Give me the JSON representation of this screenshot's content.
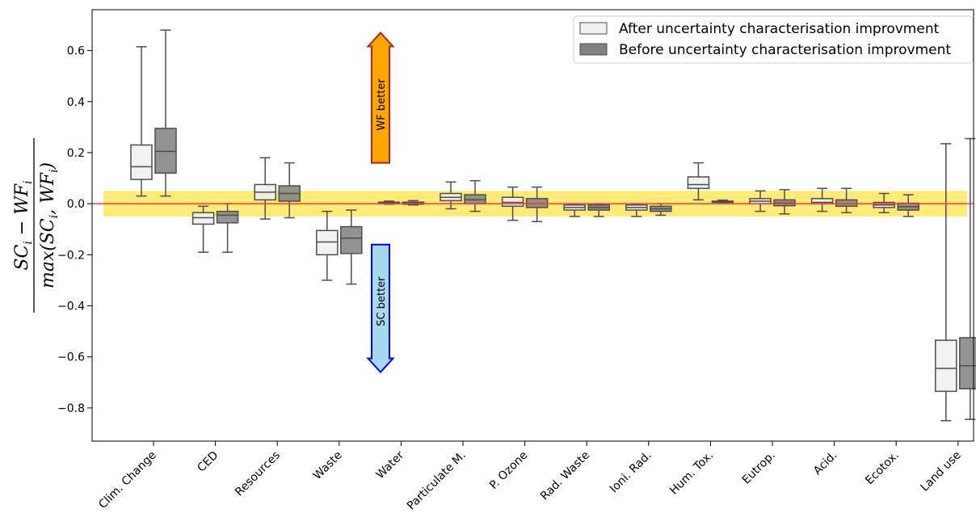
{
  "chart_data": {
    "type": "box",
    "ylabel_parts": [
      "SC",
      "i",
      " − WF",
      "i",
      "max(SC",
      "i",
      ", WF",
      "i",
      ")"
    ],
    "ylim": [
      -0.93,
      0.76
    ],
    "yticks": [
      "0.6",
      "0.4",
      "0.2",
      "0.0",
      "−0.2",
      "−0.4",
      "−0.6",
      "−0.8"
    ],
    "ytick_values": [
      0.6,
      0.4,
      0.2,
      0.0,
      -0.2,
      -0.4,
      -0.6,
      -0.8
    ],
    "categories": [
      "Clim. Change",
      "CED",
      "Resources",
      "Waste",
      "Water",
      "Particulate M.",
      "P. Ozone",
      "Rad. Waste",
      "Ioni. Rad.",
      "Hum. Tox.",
      "Eutrop.",
      "Acid.",
      "Ecotox.",
      "Land use"
    ],
    "legend": {
      "placement": "top-right",
      "entries": [
        {
          "label": "After uncertainty characterisation improvment",
          "color": "#f0f0f0"
        },
        {
          "label": "Before uncertainty characterisation improvment",
          "color": "#808080"
        }
      ]
    },
    "series": [
      {
        "name": "After uncertainty characterisation improvment",
        "color": "#f0f0f0",
        "boxes": [
          {
            "min": 0.03,
            "q1": 0.095,
            "median": 0.145,
            "q3": 0.23,
            "max": 0.615
          },
          {
            "min": -0.19,
            "q1": -0.08,
            "median": -0.055,
            "q3": -0.035,
            "max": -0.01
          },
          {
            "min": -0.06,
            "q1": 0.015,
            "median": 0.045,
            "q3": 0.075,
            "max": 0.18
          },
          {
            "min": -0.3,
            "q1": -0.2,
            "median": -0.15,
            "q3": -0.105,
            "max": -0.03
          },
          {
            "min": -0.002,
            "q1": 0.0,
            "median": 0.003,
            "q3": 0.006,
            "max": 0.01
          },
          {
            "min": -0.02,
            "q1": 0.012,
            "median": 0.025,
            "q3": 0.04,
            "max": 0.085
          },
          {
            "min": -0.065,
            "q1": -0.01,
            "median": 0.005,
            "q3": 0.025,
            "max": 0.065
          },
          {
            "min": -0.05,
            "q1": -0.025,
            "median": -0.015,
            "q3": -0.005,
            "max": 0.0
          },
          {
            "min": -0.05,
            "q1": -0.025,
            "median": -0.015,
            "q3": -0.005,
            "max": 0.0
          },
          {
            "min": 0.015,
            "q1": 0.06,
            "median": 0.075,
            "q3": 0.105,
            "max": 0.16
          },
          {
            "min": -0.03,
            "q1": 0.0,
            "median": 0.01,
            "q3": 0.02,
            "max": 0.05
          },
          {
            "min": -0.03,
            "q1": 0.0,
            "median": 0.005,
            "q3": 0.02,
            "max": 0.06
          },
          {
            "min": -0.035,
            "q1": -0.015,
            "median": -0.005,
            "q3": 0.005,
            "max": 0.04
          },
          {
            "min": -0.85,
            "q1": -0.735,
            "median": -0.645,
            "q3": -0.535,
            "max": 0.235
          }
        ]
      },
      {
        "name": "Before uncertainty characterisation improvment",
        "color": "#808080",
        "boxes": [
          {
            "min": 0.03,
            "q1": 0.12,
            "median": 0.205,
            "q3": 0.295,
            "max": 0.68
          },
          {
            "min": -0.19,
            "q1": -0.075,
            "median": -0.045,
            "q3": -0.03,
            "max": 0.0
          },
          {
            "min": -0.055,
            "q1": 0.01,
            "median": 0.04,
            "q3": 0.07,
            "max": 0.16
          },
          {
            "min": -0.315,
            "q1": -0.195,
            "median": -0.135,
            "q3": -0.09,
            "max": -0.025
          },
          {
            "min": -0.005,
            "q1": -0.002,
            "median": 0.002,
            "q3": 0.006,
            "max": 0.012
          },
          {
            "min": -0.03,
            "q1": 0.0,
            "median": 0.015,
            "q3": 0.035,
            "max": 0.09
          },
          {
            "min": -0.07,
            "q1": -0.015,
            "median": 0.0,
            "q3": 0.02,
            "max": 0.065
          },
          {
            "min": -0.05,
            "q1": -0.025,
            "median": -0.015,
            "q3": -0.005,
            "max": 0.0
          },
          {
            "min": -0.045,
            "q1": -0.03,
            "median": -0.02,
            "q3": -0.01,
            "max": 0.0
          },
          {
            "min": 0.005,
            "q1": 0.006,
            "median": 0.008,
            "q3": 0.01,
            "max": 0.014
          },
          {
            "min": -0.04,
            "q1": -0.008,
            "median": 0.003,
            "q3": 0.015,
            "max": 0.055
          },
          {
            "min": -0.035,
            "q1": -0.01,
            "median": 0.0,
            "q3": 0.015,
            "max": 0.06
          },
          {
            "min": -0.05,
            "q1": -0.025,
            "median": -0.012,
            "q3": 0.002,
            "max": 0.035
          },
          {
            "min": -0.845,
            "q1": -0.725,
            "median": -0.635,
            "q3": -0.525,
            "max": 0.255
          }
        ]
      }
    ],
    "reference_line": {
      "y": 0.0,
      "color": "#ff3b3b"
    },
    "tolerance_band": {
      "y_low": -0.05,
      "y_high": 0.05,
      "color": "#ffe24a"
    },
    "annotations": {
      "wf_arrow": {
        "label": "WF better",
        "y_from": 0.16,
        "y_to": 0.67,
        "fill": "#ffa500",
        "stroke": "#b22222"
      },
      "sc_arrow": {
        "label": "SC better",
        "y_from": -0.16,
        "y_to": -0.66,
        "fill": "#a8d8f0",
        "stroke": "#0000ee"
      }
    }
  }
}
